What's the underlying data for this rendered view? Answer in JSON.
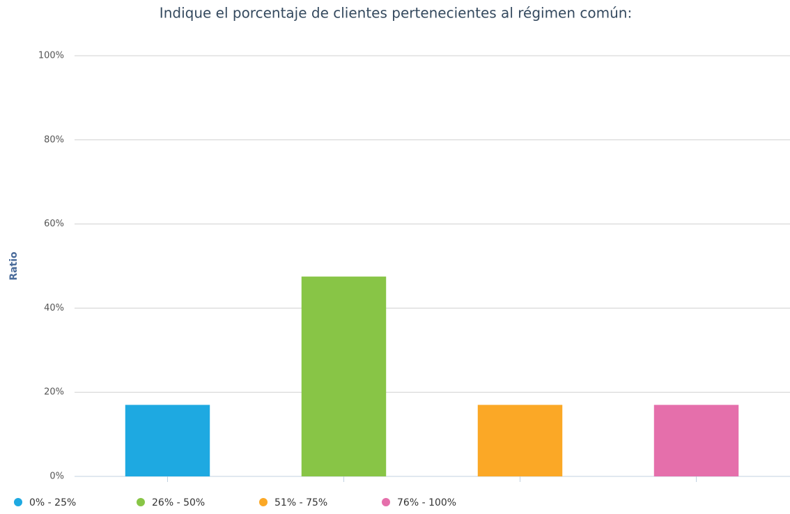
{
  "chart_data": {
    "type": "bar",
    "title": "Indique el porcentaje de clientes pertenecientes al régimen común:",
    "y_label": "Ratio",
    "categories": [
      null,
      null,
      null,
      null
    ],
    "series": [
      {
        "name": "0% - 25%",
        "color": "#1ea9e1",
        "values": [
          17,
          null,
          null,
          null
        ]
      },
      {
        "name": "26% - 50%",
        "color": "#88c546",
        "values": [
          null,
          47.5,
          null,
          null
        ]
      },
      {
        "name": "51% - 75%",
        "color": "#fba826",
        "values": [
          null,
          null,
          17,
          null
        ]
      },
      {
        "name": "76% - 100%",
        "color": "#e56fab",
        "values": [
          null,
          null,
          null,
          17
        ]
      }
    ],
    "ylim": [
      0,
      100
    ],
    "yticks": [
      {
        "value": 0,
        "label": "0%"
      },
      {
        "value": 20,
        "label": "20%"
      },
      {
        "value": 40,
        "label": "40%"
      },
      {
        "value": 60,
        "label": "60%"
      },
      {
        "value": 80,
        "label": "80%"
      },
      {
        "value": 100,
        "label": "100%"
      }
    ],
    "grid": true,
    "legend": "bottom-left"
  }
}
